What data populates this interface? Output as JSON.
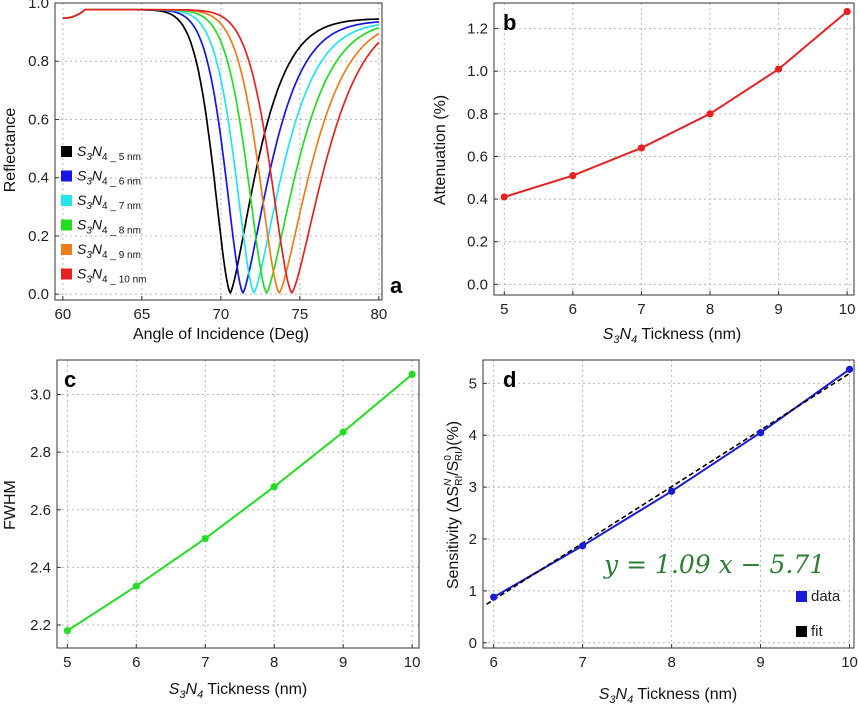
{
  "chart_data": [
    {
      "panel_label": "a",
      "type": "line",
      "xlabel": "Angle of Incidence (Deg)",
      "ylabel": "Reflectance",
      "xlim": [
        59.5,
        80.2
      ],
      "ylim": [
        -0.02,
        1.0
      ],
      "xticks": [
        60,
        65,
        70,
        75,
        80
      ],
      "yticks": [
        0.0,
        0.2,
        0.4,
        0.6,
        0.8,
        1.0
      ],
      "grid": true,
      "legend_position": "left",
      "series": [
        {
          "name": "S3N4_5nm",
          "label_main": "S",
          "label_sub1": "3",
          "label_mid": "N",
          "label_sub2": "4 _ 5 nm",
          "color": "#000000",
          "resonance_angle": 70.6,
          "min_reflectance": 0.005,
          "width": 1.55,
          "right_tail_80": 0.945
        },
        {
          "name": "S3N4_6nm",
          "label_main": "S",
          "label_sub1": "3",
          "label_mid": "N",
          "label_sub2": "4 _ 6 nm",
          "color": "#1515e6",
          "resonance_angle": 71.4,
          "min_reflectance": 0.005,
          "width": 1.62,
          "right_tail_80": 0.935
        },
        {
          "name": "S3N4_7nm",
          "label_main": "S",
          "label_sub1": "3",
          "label_mid": "N",
          "label_sub2": "4 _ 7 nm",
          "color": "#22e5ea",
          "resonance_angle": 72.1,
          "min_reflectance": 0.005,
          "width": 1.7,
          "right_tail_80": 0.925
        },
        {
          "name": "S3N4_8nm",
          "label_main": "S",
          "label_sub1": "3",
          "label_mid": "N",
          "label_sub2": "4 _ 8 nm",
          "color": "#22dd22",
          "resonance_angle": 72.9,
          "min_reflectance": 0.005,
          "width": 1.78,
          "right_tail_80": 0.915
        },
        {
          "name": "S3N4_9nm",
          "label_main": "S",
          "label_sub1": "3",
          "label_mid": "N",
          "label_sub2": "4 _ 9 nm",
          "color": "#f07b1a",
          "resonance_angle": 73.7,
          "min_reflectance": 0.005,
          "width": 1.86,
          "right_tail_80": 0.895
        },
        {
          "name": "S3N4_10nm",
          "label_main": "S",
          "label_sub1": "3",
          "label_mid": "N",
          "label_sub2": "4 _ 10 nm",
          "color": "#e82020",
          "resonance_angle": 74.5,
          "min_reflectance": 0.005,
          "width": 1.95,
          "right_tail_80": 0.865
        }
      ]
    },
    {
      "panel_label": "b",
      "type": "line",
      "xlabel_main": "S",
      "xlabel_sub1": "3",
      "xlabel_mid": "N",
      "xlabel_sub2": "4",
      "xlabel_rest": " Tickness (nm)",
      "ylabel": "Attenuation (%)",
      "xlim": [
        4.85,
        10.1
      ],
      "ylim": [
        -0.05,
        1.32
      ],
      "xticks": [
        5,
        6,
        7,
        8,
        9,
        10
      ],
      "yticks": [
        0.0,
        0.2,
        0.4,
        0.6,
        0.8,
        1.0,
        1.2
      ],
      "grid": true,
      "color": "#e82020",
      "x": [
        5,
        6,
        7,
        8,
        9,
        10
      ],
      "values": [
        0.41,
        0.51,
        0.64,
        0.8,
        1.01,
        1.28
      ]
    },
    {
      "panel_label": "c",
      "type": "line",
      "xlabel_main": "S",
      "xlabel_sub1": "3",
      "xlabel_mid": "N",
      "xlabel_sub2": "4",
      "xlabel_rest": " Tickness (nm)",
      "ylabel": "FWHM",
      "xlim": [
        4.85,
        10.1
      ],
      "ylim": [
        2.12,
        3.12
      ],
      "xticks": [
        5,
        6,
        7,
        8,
        9,
        10
      ],
      "yticks": [
        2.2,
        2.4,
        2.6,
        2.8,
        3.0
      ],
      "grid": true,
      "color": "#22dd22",
      "x": [
        5,
        6,
        7,
        8,
        9,
        10
      ],
      "values": [
        2.18,
        2.335,
        2.5,
        2.68,
        2.87,
        3.07
      ]
    },
    {
      "panel_label": "d",
      "type": "scatter",
      "xlabel_main": "S",
      "xlabel_sub1": "3",
      "xlabel_mid": "N",
      "xlabel_sub2": "4",
      "xlabel_rest": " Tickness (nm)",
      "ylabel_main": "Sensitivity (ΔS",
      "ylabel_sup1": "N",
      "ylabel_sub1": "RI",
      "ylabel_mid": "/S",
      "ylabel_sup2": "0",
      "ylabel_sub2": "RI",
      "ylabel_rest": ")(%)",
      "xlim": [
        5.88,
        10.05
      ],
      "ylim": [
        -0.1,
        5.45
      ],
      "xticks": [
        6,
        7,
        8,
        9,
        10
      ],
      "yticks": [
        0,
        1,
        2,
        3,
        4,
        5
      ],
      "grid": true,
      "data_color": "#1a1ad6",
      "fit_color": "#000000",
      "x": [
        6,
        7,
        8,
        9,
        10
      ],
      "values": [
        0.88,
        1.87,
        2.92,
        4.05,
        5.27
      ],
      "fit_slope": 1.09,
      "fit_intercept": -5.71,
      "fit_x_range": [
        5.92,
        10.0
      ],
      "equation": "y = 1.09 x  − 5.71",
      "legend": [
        {
          "label": "data",
          "color": "#1a1ad6"
        },
        {
          "label": "fit",
          "color": "#000000"
        }
      ]
    }
  ]
}
